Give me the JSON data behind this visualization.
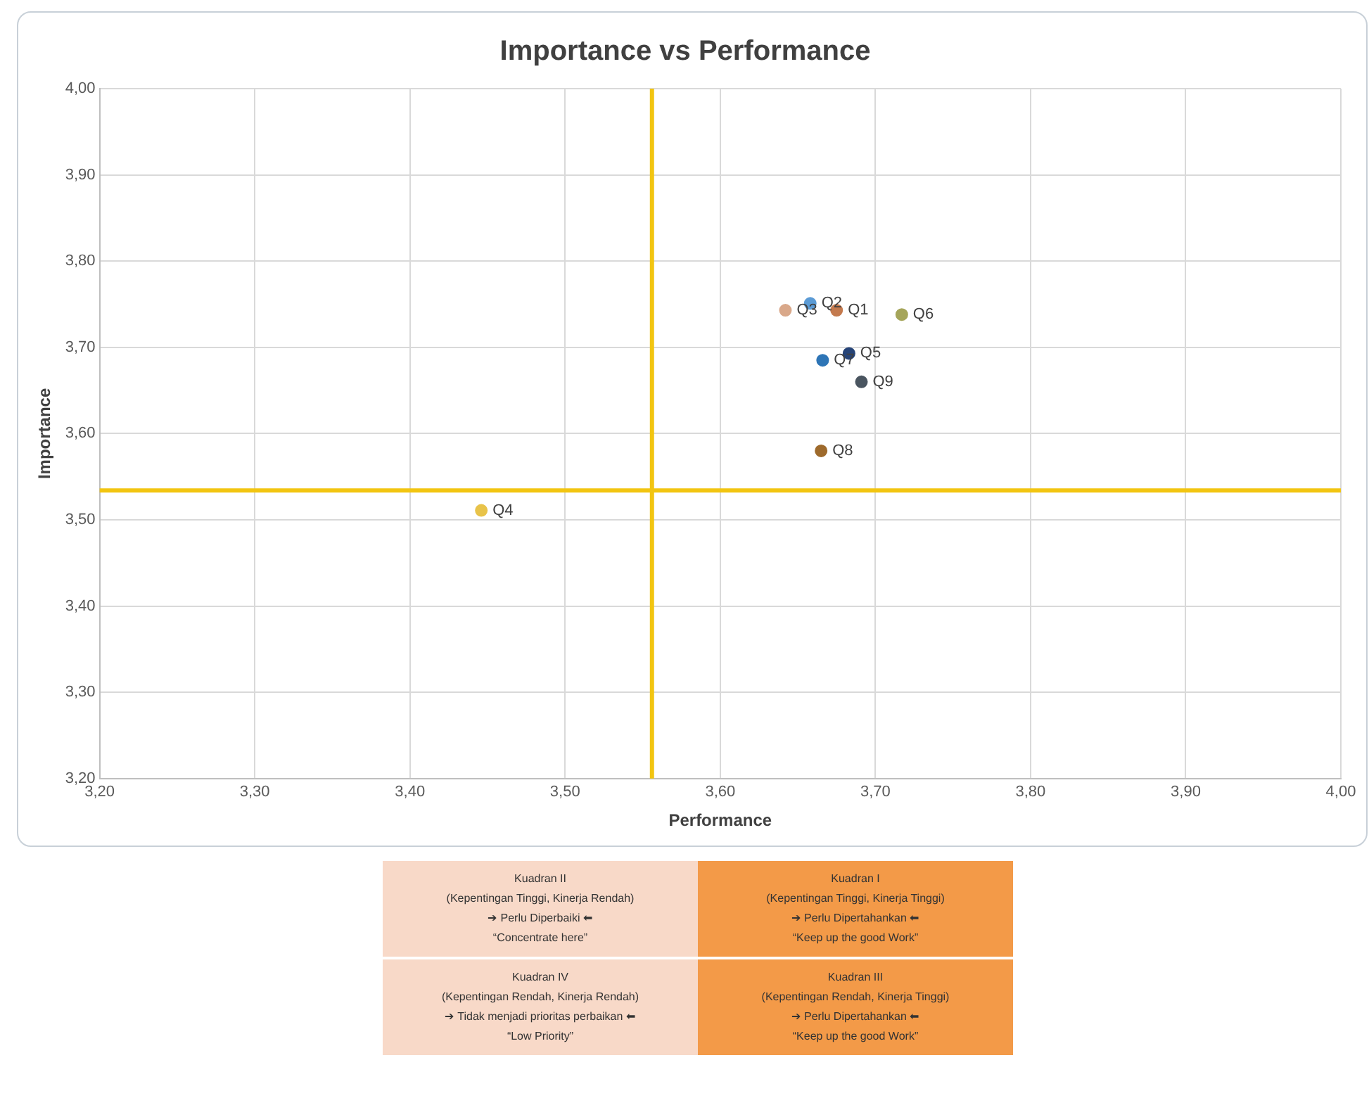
{
  "chart_data": {
    "type": "scatter",
    "title": "Importance vs Performance",
    "xlabel": "Performance",
    "ylabel": "Importance",
    "xlim": [
      3.2,
      4.0
    ],
    "ylim": [
      3.2,
      4.0
    ],
    "xticks": [
      {
        "value": 3.2,
        "label": "3,20"
      },
      {
        "value": 3.3,
        "label": "3,30"
      },
      {
        "value": 3.4,
        "label": "3,40"
      },
      {
        "value": 3.5,
        "label": "3,50"
      },
      {
        "value": 3.6,
        "label": "3,60"
      },
      {
        "value": 3.7,
        "label": "3,70"
      },
      {
        "value": 3.8,
        "label": "3,80"
      },
      {
        "value": 3.9,
        "label": "3,90"
      },
      {
        "value": 4.0,
        "label": "4,00"
      }
    ],
    "yticks": [
      {
        "value": 3.2,
        "label": "3,20"
      },
      {
        "value": 3.3,
        "label": "3,30"
      },
      {
        "value": 3.4,
        "label": "3,40"
      },
      {
        "value": 3.5,
        "label": "3,50"
      },
      {
        "value": 3.6,
        "label": "3,60"
      },
      {
        "value": 3.7,
        "label": "3,70"
      },
      {
        "value": 3.8,
        "label": "3,80"
      },
      {
        "value": 3.9,
        "label": "3,90"
      },
      {
        "value": 4.0,
        "label": "4,00"
      }
    ],
    "grid": true,
    "legend": false,
    "marker": "circle",
    "series": [
      {
        "name": "Q3",
        "color": "#d9a88a",
        "x": [
          3.642
        ],
        "values": [
          3.743
        ]
      },
      {
        "name": "Q2",
        "color": "#5b9bd5",
        "x": [
          3.658
        ],
        "values": [
          3.751
        ]
      },
      {
        "name": "Q1",
        "color": "#c47a4e",
        "x": [
          3.675
        ],
        "values": [
          3.743
        ]
      },
      {
        "name": "Q6",
        "color": "#a5a55a",
        "x": [
          3.717
        ],
        "values": [
          3.738
        ]
      },
      {
        "name": "Q7",
        "color": "#2e75b6",
        "x": [
          3.666
        ],
        "values": [
          3.685
        ]
      },
      {
        "name": "Q5",
        "color": "#264478",
        "x": [
          3.683
        ],
        "values": [
          3.693
        ]
      },
      {
        "name": "Q9",
        "color": "#4a5560",
        "x": [
          3.691
        ],
        "values": [
          3.66
        ]
      },
      {
        "name": "Q8",
        "color": "#9e6a2c",
        "x": [
          3.665
        ],
        "values": [
          3.58
        ]
      },
      {
        "name": "Q4",
        "color": "#e8c34a",
        "x": [
          3.446
        ],
        "values": [
          3.511
        ]
      }
    ],
    "ref_lines": [
      {
        "axis": "x",
        "value": 3.556,
        "color": "#f2c511"
      },
      {
        "axis": "y",
        "value": 3.534,
        "color": "#f2c511"
      }
    ],
    "annotations": [
      "Kuadran II\n(Kepentingan Tinggi, Kinerja Rendah)\n➔ Perlu Diperbaiki ⬅\n“Concentrate here”",
      "Kuadran I\n(Kepentingan Tinggi, Kinerja Tinggi)\n➔ Perlu Dipertahankan ⬅\n“Keep up the good Work”",
      "Kuadran IV\n(Kepentingan Rendah, Kinerja Rendah)\n➔ Tidak menjadi prioritas perbaikan ⬅\n“Low Priority”",
      "Kuadran III\n(Kepentingan Rendah, Kinerja Tinggi)\n➔ Perlu Dipertahankan ⬅\n“Keep up the good Work”"
    ]
  }
}
